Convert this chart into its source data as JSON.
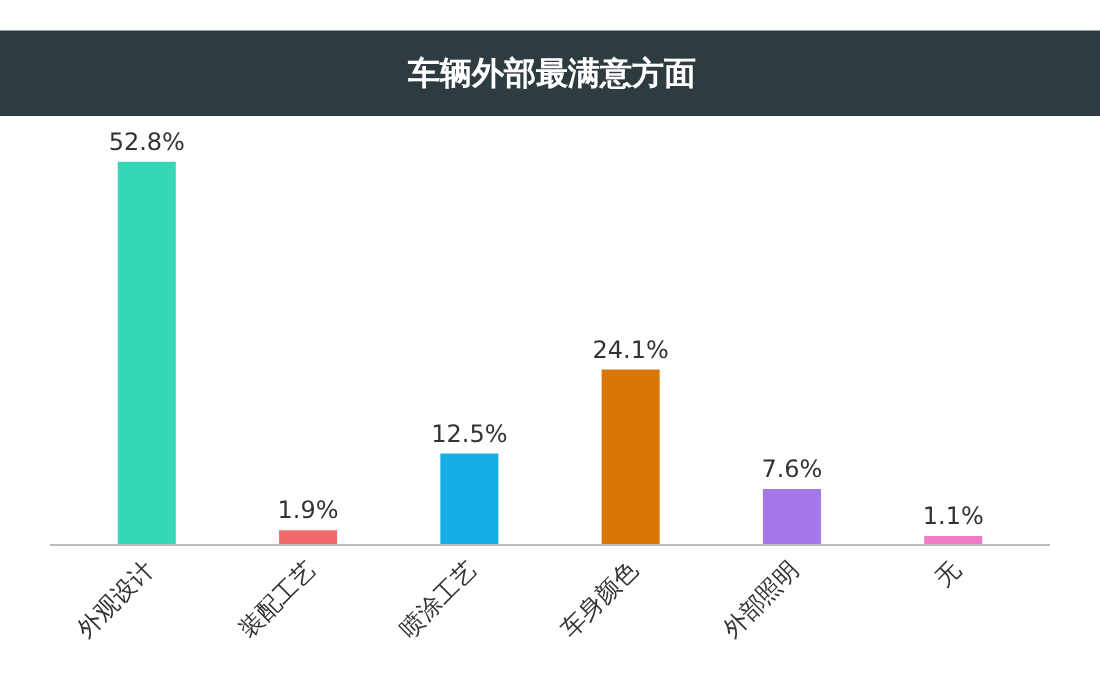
{
  "chart_data": {
    "type": "bar",
    "title": "车辆外部最满意方面",
    "categories": [
      "外观设计",
      "装配工艺",
      "喷涂工艺",
      "车身颜色",
      "外部照明",
      "无"
    ],
    "values": [
      52.8,
      1.9,
      12.5,
      24.1,
      7.6,
      1.1
    ],
    "colors": [
      "#36d6b8",
      "#f06a6a",
      "#16aee8",
      "#d97706",
      "#a478e8",
      "#f07ac8"
    ],
    "value_labels": [
      "52.8%",
      "1.9%",
      "12.5%",
      "24.1%",
      "7.6%",
      "1.1%"
    ],
    "legend": false
  }
}
